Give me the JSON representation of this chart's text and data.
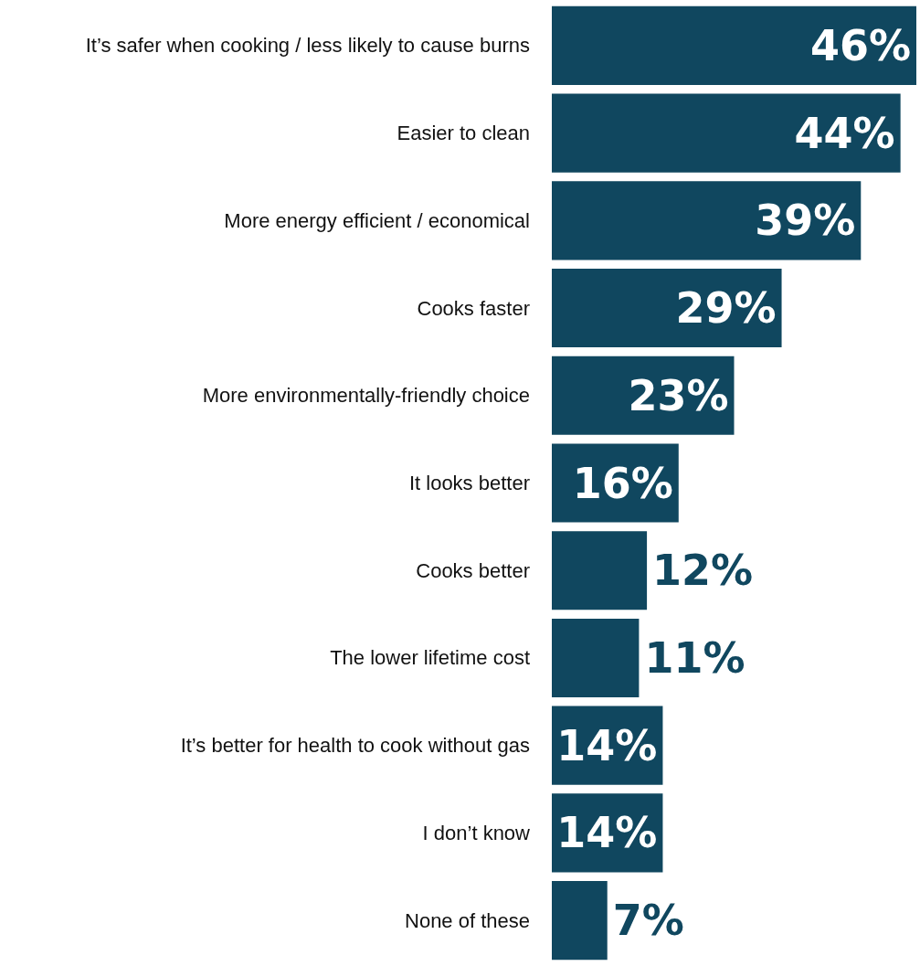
{
  "chart_data": {
    "type": "bar",
    "orientation": "horizontal",
    "categories": [
      "It’s safer when cooking / less likely to cause burns",
      "Easier to clean",
      "More energy efficient / economical",
      "Cooks faster",
      "More environmentally-friendly choice",
      "It looks better",
      "Cooks better",
      "The lower lifetime cost",
      "It’s better for health to cook without gas",
      "I don’t know",
      "None of these"
    ],
    "values": [
      46,
      44,
      39,
      29,
      23,
      16,
      12,
      11,
      14,
      14,
      7
    ],
    "value_labels": [
      "46%",
      "44%",
      "39%",
      "29%",
      "23%",
      "16%",
      "12%",
      "11%",
      "14%",
      "14%",
      "7%"
    ],
    "color": "#10475f"
  }
}
